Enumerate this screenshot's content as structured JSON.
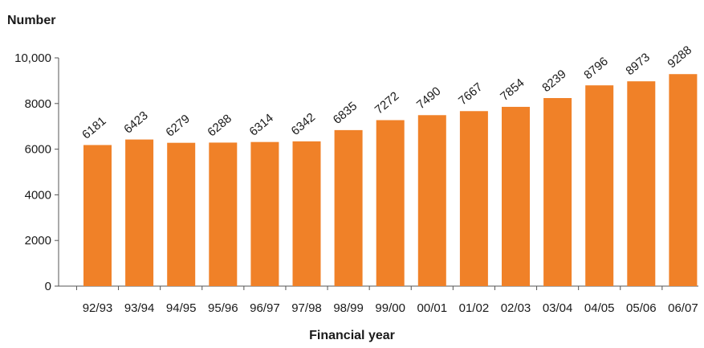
{
  "chart_data": {
    "type": "bar",
    "title": "",
    "ylabel": "Number",
    "xlabel": "Financial year",
    "ylim": [
      0,
      10000
    ],
    "yticks": [
      {
        "value": 0,
        "label": "0"
      },
      {
        "value": 2000,
        "label": "2000"
      },
      {
        "value": 4000,
        "label": "4000"
      },
      {
        "value": 6000,
        "label": "6000"
      },
      {
        "value": 8000,
        "label": "8000"
      },
      {
        "value": 10000,
        "label": "10,000"
      }
    ],
    "categories": [
      "92/93",
      "93/94",
      "94/95",
      "95/96",
      "96/97",
      "97/98",
      "98/99",
      "99/00",
      "00/01",
      "01/02",
      "02/03",
      "03/04",
      "04/05",
      "05/06",
      "06/07"
    ],
    "values": [
      6181,
      6423,
      6279,
      6288,
      6314,
      6342,
      6835,
      7272,
      7490,
      7667,
      7854,
      8239,
      8796,
      8973,
      9288
    ],
    "grid": false,
    "bar_color": "#F08128",
    "axis_color": "#555555"
  }
}
